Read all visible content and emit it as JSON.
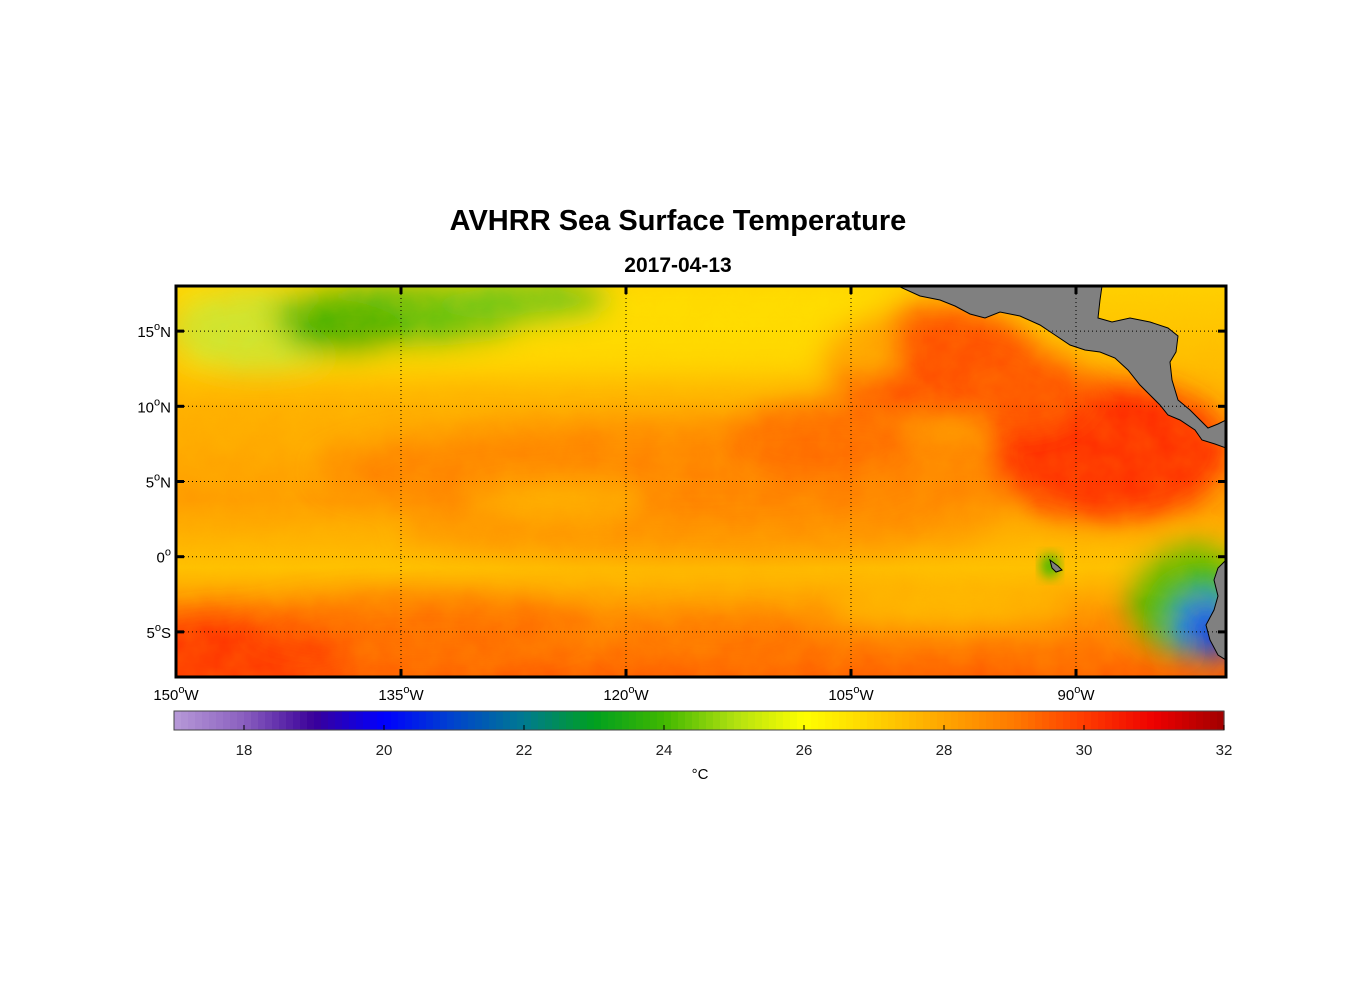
{
  "title": "AVHRR Sea Surface Temperature",
  "subtitle": "2017-04-13",
  "map": {
    "lon_range": [
      -150,
      -80
    ],
    "lat_range": [
      -8,
      18
    ],
    "lat_ticks": [
      {
        "value": 15,
        "num": "15",
        "hemi": "N"
      },
      {
        "value": 10,
        "num": "10",
        "hemi": "N"
      },
      {
        "value": 5,
        "num": "5",
        "hemi": "N"
      },
      {
        "value": 0,
        "num": "0",
        "hemi": ""
      },
      {
        "value": -5,
        "num": "5",
        "hemi": "S"
      }
    ],
    "lon_ticks": [
      {
        "value": -150,
        "num": "150",
        "hemi": "W"
      },
      {
        "value": -135,
        "num": "135",
        "hemi": "W"
      },
      {
        "value": -120,
        "num": "120",
        "hemi": "W"
      },
      {
        "value": -105,
        "num": "105",
        "hemi": "W"
      },
      {
        "value": -90,
        "num": "90",
        "hemi": "W"
      }
    ],
    "land_color": "#808080"
  },
  "colorbar": {
    "min": 17,
    "max": 32,
    "ticks": [
      18,
      20,
      22,
      24,
      26,
      28,
      30,
      32
    ],
    "units": "°C",
    "colors": [
      {
        "t": 17,
        "c": "#b79ad8"
      },
      {
        "t": 18,
        "c": "#8a5fbf"
      },
      {
        "t": 19,
        "c": "#3a0099"
      },
      {
        "t": 20,
        "c": "#0000ff"
      },
      {
        "t": 21,
        "c": "#0044cc"
      },
      {
        "t": 22,
        "c": "#007a90"
      },
      {
        "t": 23,
        "c": "#00a020"
      },
      {
        "t": 24,
        "c": "#40b800"
      },
      {
        "t": 25,
        "c": "#b0e010"
      },
      {
        "t": 26,
        "c": "#ffff00"
      },
      {
        "t": 27,
        "c": "#ffd200"
      },
      {
        "t": 28,
        "c": "#ffa500"
      },
      {
        "t": 29,
        "c": "#ff7a00"
      },
      {
        "t": 30,
        "c": "#ff3c00"
      },
      {
        "t": 31,
        "c": "#ee0000"
      },
      {
        "t": 32,
        "c": "#a00000"
      }
    ]
  }
}
